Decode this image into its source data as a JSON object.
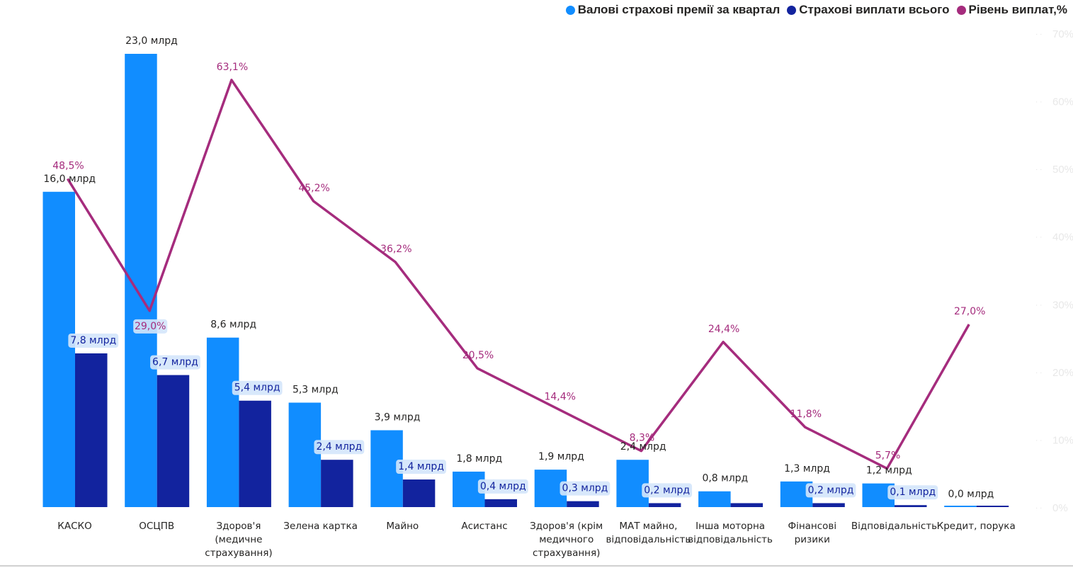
{
  "chart_data": {
    "type": "bar+line",
    "categories": [
      [
        "КАСКО"
      ],
      [
        "ОСЦПВ"
      ],
      [
        "Здоров'я",
        "(медичне",
        "страхування)"
      ],
      [
        "Зелена картка"
      ],
      [
        "Майно"
      ],
      [
        "Асистанс"
      ],
      [
        "Здоров'я (крім",
        "медичного",
        "страхування)"
      ],
      [
        "МАТ майно,",
        "відповідальність"
      ],
      [
        "Інша моторна",
        "відповідальність"
      ],
      [
        "Фінансові",
        "ризики"
      ],
      [
        "Відповідальність"
      ],
      [
        "Кредит, порука"
      ]
    ],
    "series": [
      {
        "name": "Валові страхові премії за квартал",
        "type": "bar",
        "color": "#118DFF",
        "values": [
          16.0,
          23.0,
          8.6,
          5.3,
          3.9,
          1.8,
          1.9,
          2.4,
          0.8,
          1.3,
          1.2,
          0.0
        ],
        "labels": [
          "16,0 млрд",
          "23,0 млрд",
          "8,6 млрд",
          "5,3 млрд",
          "3,9 млрд",
          "1,8 млрд",
          "1,9 млрд",
          "2,4 млрд",
          "0,8 млрд",
          "1,3 млрд",
          "1,2 млрд",
          "0,0 млрд"
        ]
      },
      {
        "name": "Страхові виплати всього",
        "type": "bar",
        "color": "#12239E",
        "values": [
          7.8,
          6.7,
          5.4,
          2.4,
          1.4,
          0.4,
          0.3,
          0.2,
          0.2,
          0.2,
          0.1,
          0.0
        ],
        "labels": [
          "7,8 млрд",
          "6,7 млрд",
          "5,4 млрд",
          "2,4 млрд",
          "1,4 млрд",
          "0,4 млрд",
          "0,3 млрд",
          "0,2 млрд",
          "",
          "0,2 млрд",
          "0,1 млрд",
          ""
        ]
      },
      {
        "name": "Рівень виплат,%",
        "type": "line",
        "axis": "right",
        "color": "#A52C7D",
        "values": [
          48.5,
          29.0,
          63.1,
          45.2,
          36.2,
          20.5,
          14.4,
          8.3,
          24.4,
          11.8,
          5.7,
          27.0
        ],
        "labels": [
          "48,5%",
          "29,0%",
          "63,1%",
          "45,2%",
          "36,2%",
          "20,5%",
          "14,4%",
          "8,3%",
          "24,4%",
          "11,8%",
          "5,7%",
          "27,0%"
        ]
      }
    ],
    "y_left_lim": [
      0,
      23.0
    ],
    "y_right_lim": [
      0,
      70
    ],
    "y_right_ticks": [
      "0%",
      "10%",
      "20%",
      "30%",
      "40%",
      "50%",
      "60%",
      "70%"
    ],
    "legend_position": "top-right",
    "grid": false
  }
}
